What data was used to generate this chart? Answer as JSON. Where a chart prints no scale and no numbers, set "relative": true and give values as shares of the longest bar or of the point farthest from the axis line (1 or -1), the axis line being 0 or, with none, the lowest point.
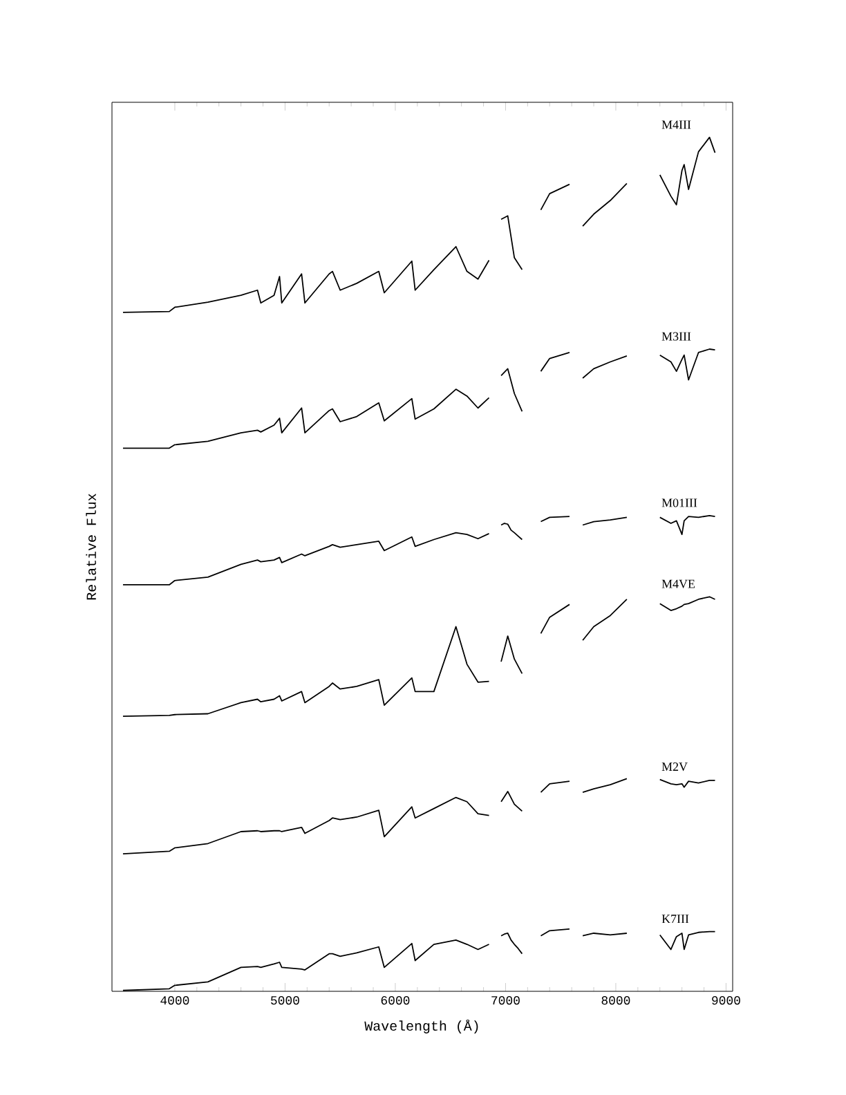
{
  "chart_data": {
    "type": "line",
    "relative": true,
    "xlabel": "Wavelength (Å)",
    "ylabel": "Relative Flux",
    "xlim": [
      3430,
      9060
    ],
    "xticks": [
      4000,
      5000,
      6000,
      7000,
      8000,
      9000
    ],
    "legend": false,
    "grid": false,
    "marker": "none",
    "line_style": "solid",
    "x": [
      3530,
      3950,
      4000,
      4300,
      4600,
      4750,
      4780,
      4900,
      4950,
      4970,
      5150,
      5180,
      5400,
      5430,
      5500,
      5650,
      5850,
      5900,
      6150,
      6180,
      6350,
      6550,
      6650,
      6750,
      6850,
      6900,
      6960,
      7020,
      7080,
      7150,
      7220,
      7320,
      7400,
      7580,
      7650,
      7700,
      7800,
      7950,
      8100,
      8250,
      8400,
      8500,
      8550,
      8600,
      8620,
      8660,
      8750,
      8850,
      8900
    ],
    "series": [
      {
        "name": "M4III",
        "color": "#000000",
        "values": [
          0.795,
          0.796,
          0.801,
          0.807,
          0.815,
          0.821,
          0.806,
          0.815,
          0.837,
          0.806,
          0.84,
          0.806,
          0.84,
          0.843,
          0.821,
          0.829,
          0.843,
          0.818,
          0.855,
          0.821,
          0.845,
          0.872,
          0.843,
          0.834,
          0.856,
          null,
          0.904,
          0.908,
          0.859,
          0.845,
          null,
          0.915,
          0.934,
          0.945,
          null,
          0.896,
          0.91,
          0.926,
          0.946,
          null,
          0.956,
          0.931,
          0.921,
          0.961,
          0.968,
          0.939,
          0.983,
          1.0,
          0.982
        ]
      },
      {
        "name": "M3III",
        "color": "#000000",
        "values": [
          0.636,
          0.636,
          0.64,
          0.644,
          0.654,
          0.657,
          0.655,
          0.663,
          0.671,
          0.654,
          0.683,
          0.654,
          0.68,
          0.682,
          0.667,
          0.673,
          0.689,
          0.668,
          0.694,
          0.67,
          0.682,
          0.705,
          0.697,
          0.683,
          0.695,
          null,
          0.721,
          0.729,
          0.7,
          0.679,
          null,
          0.726,
          0.741,
          0.748,
          null,
          0.718,
          0.729,
          0.737,
          0.744,
          null,
          0.745,
          0.737,
          0.726,
          0.74,
          0.745,
          0.716,
          0.748,
          0.752,
          0.751
        ]
      },
      {
        "name": "M01III",
        "color": "#000000",
        "x": [
          3530,
          3950,
          4000,
          4300,
          4600,
          4750,
          4780,
          4900,
          4950,
          4970,
          5150,
          5180,
          5400,
          5430,
          5500,
          5650,
          5850,
          5900,
          6150,
          6180,
          6350,
          6550,
          6650,
          6750,
          6850,
          6900,
          6960,
          6990,
          7020,
          7050,
          7080,
          7115,
          7150,
          7220,
          7320,
          7400,
          7580,
          7650,
          7700,
          7800,
          7950,
          8100,
          8250,
          8400,
          8500,
          8550,
          8600,
          8620,
          8660,
          8750,
          8850,
          8900
        ],
        "values": [
          0.476,
          0.476,
          0.481,
          0.485,
          0.5,
          0.505,
          0.503,
          0.505,
          0.508,
          0.502,
          0.512,
          0.51,
          0.521,
          0.523,
          0.52,
          0.523,
          0.527,
          0.516,
          0.532,
          0.521,
          0.529,
          0.537,
          0.535,
          0.53,
          0.536,
          null,
          0.546,
          0.548,
          0.547,
          0.54,
          0.537,
          0.533,
          0.529,
          null,
          0.55,
          0.555,
          0.556,
          null,
          0.546,
          0.55,
          0.552,
          0.555,
          null,
          0.555,
          0.548,
          0.551,
          0.535,
          0.551,
          0.556,
          0.555,
          0.557,
          0.556
        ]
      },
      {
        "name": "M4VE",
        "color": "#000000",
        "values": [
          0.322,
          0.323,
          0.324,
          0.325,
          0.338,
          0.342,
          0.339,
          0.342,
          0.346,
          0.34,
          0.351,
          0.338,
          0.357,
          0.361,
          0.354,
          0.357,
          0.365,
          0.335,
          0.367,
          0.351,
          0.351,
          0.427,
          0.383,
          0.362,
          0.363,
          null,
          0.386,
          0.416,
          0.389,
          0.372,
          null,
          0.419,
          0.438,
          0.453,
          null,
          0.411,
          0.427,
          0.44,
          0.459,
          null,
          0.454,
          0.446,
          0.448,
          0.451,
          0.453,
          0.454,
          0.459,
          0.462,
          0.459
        ]
      },
      {
        "name": "M2V",
        "color": "#000000",
        "values": [
          0.161,
          0.164,
          0.168,
          0.173,
          0.187,
          0.188,
          0.187,
          0.188,
          0.188,
          0.187,
          0.192,
          0.185,
          0.2,
          0.203,
          0.201,
          0.204,
          0.212,
          0.181,
          0.216,
          0.203,
          0.214,
          0.227,
          0.222,
          0.208,
          0.206,
          null,
          0.222,
          0.234,
          0.219,
          0.211,
          null,
          0.233,
          0.243,
          0.246,
          null,
          0.233,
          0.237,
          0.242,
          0.249,
          null,
          0.248,
          0.243,
          0.242,
          0.243,
          0.239,
          0.246,
          0.244,
          0.247,
          0.247
        ]
      },
      {
        "name": "K7III",
        "color": "#000000",
        "x": [
          3530,
          3950,
          4000,
          4300,
          4600,
          4750,
          4780,
          4900,
          4950,
          4970,
          5150,
          5180,
          5400,
          5430,
          5500,
          5650,
          5850,
          5900,
          6150,
          6180,
          6350,
          6550,
          6650,
          6750,
          6850,
          6900,
          6960,
          6990,
          7020,
          7050,
          7080,
          7115,
          7150,
          7220,
          7320,
          7400,
          7580,
          7650,
          7700,
          7800,
          7950,
          8100,
          8250,
          8400,
          8500,
          8550,
          8600,
          8620,
          8660,
          8750,
          8850,
          8900
        ],
        "values": [
          0.001,
          0.003,
          0.007,
          0.011,
          0.028,
          0.029,
          0.028,
          0.032,
          0.034,
          0.028,
          0.026,
          0.025,
          0.044,
          0.044,
          0.041,
          0.045,
          0.052,
          0.028,
          0.056,
          0.036,
          0.055,
          0.06,
          0.055,
          0.049,
          0.055,
          null,
          0.065,
          0.067,
          0.068,
          0.06,
          0.055,
          0.05,
          0.044,
          null,
          0.065,
          0.071,
          0.073,
          null,
          0.065,
          0.068,
          0.066,
          0.068,
          null,
          0.066,
          0.049,
          0.064,
          0.068,
          0.049,
          0.066,
          0.069,
          0.07,
          0.07
        ]
      }
    ]
  }
}
